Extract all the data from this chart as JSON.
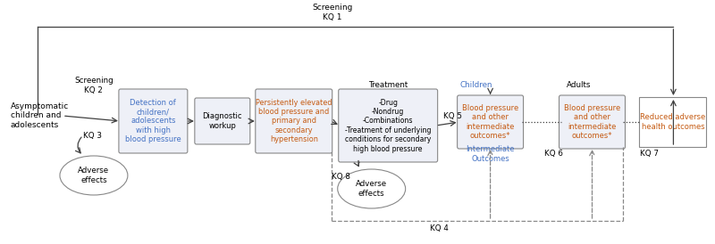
{
  "bg_color": "#ffffff",
  "text_color": "#000000",
  "box_color_light": "#eef0f7",
  "box_edge_color": "#888888",
  "arrow_color": "#404040",
  "dashed_color": "#888888",
  "screening_kq1_label": "Screening\nKQ 1",
  "screening_kq2_label": "Screening\nKQ 2",
  "kq3_label": "KQ 3",
  "kq4_label": "KQ 4",
  "kq5_label": "KQ 5",
  "kq6_label": "KQ 6",
  "kq7_label": "KQ 7",
  "kq8_label": "KQ 8",
  "treatment_label": "Treatment",
  "children_label": "Children",
  "adults_label": "Adults",
  "intermediate_outcomes_label": "Intermediate\nOutcomes",
  "pop_text": "Asymptomatic\nchildren and\nadolescents",
  "detect_text": "Detection of\nchildren/\nadolescents\nwith high\nblood pressure",
  "diag_text": "Diagnostic\nworkup",
  "persist_text": "Persistently elevated\nblood pressure and\nprimary and\nsecondary\nhypertension",
  "treatment_text": "-Drug\n-Nondrug\n-Combinations\n-Treatment of underlying\nconditions for secondary\nhigh blood pressure",
  "bp_children_text": "Blood pressure\nand other\nintermediate\noutcomes*",
  "bp_adults_text": "Blood pressure\nand other\nintermediate\noutcomes*",
  "reduced_text": "Reduced adverse\nhealth outcomes",
  "adverse1_text": "Adverse\neffects",
  "adverse2_text": "Adverse\neffects",
  "blue_text": "#4472c4",
  "orange_text": "#c55a11"
}
